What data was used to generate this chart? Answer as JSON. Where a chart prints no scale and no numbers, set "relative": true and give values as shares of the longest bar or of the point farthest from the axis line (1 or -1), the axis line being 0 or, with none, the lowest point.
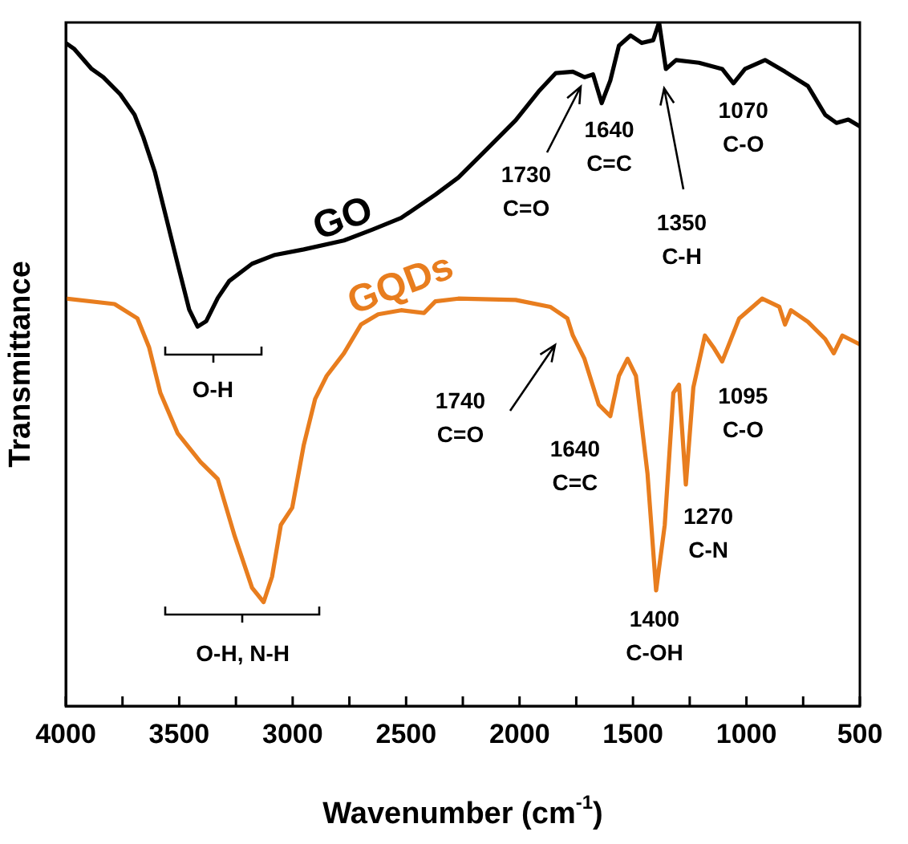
{
  "chart_data": {
    "type": "line",
    "relative": true,
    "xlabel": "Wavenumber (cm$^{-1}$)",
    "ylabel": "Transmittance",
    "xlim": [
      4000,
      500
    ],
    "xticks": [
      4000,
      {
        "value": 3750,
        "label": null
      },
      3500,
      {
        "value": 3250,
        "label": null
      },
      3000,
      {
        "value": 2750,
        "label": null
      },
      2500,
      {
        "value": 2250,
        "label": null
      },
      2000,
      {
        "value": 1750,
        "label": null
      },
      1500,
      {
        "value": 1250,
        "label": null
      },
      1000,
      {
        "value": 750,
        "label": null
      },
      500
    ],
    "grid": false,
    "legend": false,
    "marker": "none",
    "line_style": "solid",
    "series": [
      {
        "name": "GO",
        "color": "#000000",
        "x": [
          4000,
          3962,
          3886,
          3835,
          3760,
          3697,
          3658,
          3608,
          3557,
          3507,
          3456,
          3419,
          3381,
          3330,
          3279,
          3179,
          3078,
          2951,
          2774,
          2648,
          2522,
          2371,
          2270,
          2143,
          2017,
          1916,
          1840,
          1765,
          1714,
          1676,
          1638,
          1600,
          1562,
          1511,
          1461,
          1411,
          1385,
          1355,
          1310,
          1209,
          1107,
          1057,
          1006,
          918,
          830,
          729,
          653,
          603,
          551,
          500
        ],
        "values": [
          0.97,
          0.961,
          0.932,
          0.92,
          0.895,
          0.865,
          0.832,
          0.782,
          0.714,
          0.647,
          0.58,
          0.555,
          0.563,
          0.597,
          0.622,
          0.647,
          0.66,
          0.668,
          0.681,
          0.697,
          0.714,
          0.748,
          0.773,
          0.815,
          0.857,
          0.899,
          0.926,
          0.928,
          0.92,
          0.924,
          0.882,
          0.915,
          0.966,
          0.981,
          0.97,
          0.974,
          1.0,
          0.932,
          0.945,
          0.941,
          0.932,
          0.911,
          0.932,
          0.945,
          0.928,
          0.907,
          0.865,
          0.853,
          0.858,
          0.848
        ]
      },
      {
        "name": "GQDs",
        "color": "#e87d1e",
        "x": [
          4000,
          3785,
          3684,
          3633,
          3583,
          3507,
          3406,
          3330,
          3255,
          3179,
          3128,
          3091,
          3052,
          3002,
          2951,
          2901,
          2850,
          2774,
          2699,
          2623,
          2522,
          2421,
          2371,
          2270,
          2017,
          1865,
          1789,
          1765,
          1714,
          1651,
          1600,
          1562,
          1524,
          1487,
          1436,
          1398,
          1360,
          1322,
          1297,
          1267,
          1234,
          1183,
          1146,
          1107,
          1032,
          931,
          855,
          830,
          804,
          729,
          653,
          615,
          577,
          500
        ],
        "values": [
          0.596,
          0.588,
          0.567,
          0.525,
          0.458,
          0.399,
          0.357,
          0.332,
          0.248,
          0.173,
          0.152,
          0.189,
          0.265,
          0.29,
          0.382,
          0.449,
          0.483,
          0.516,
          0.558,
          0.573,
          0.579,
          0.575,
          0.592,
          0.596,
          0.594,
          0.584,
          0.567,
          0.542,
          0.508,
          0.441,
          0.424,
          0.483,
          0.508,
          0.483,
          0.34,
          0.169,
          0.265,
          0.458,
          0.47,
          0.324,
          0.466,
          0.542,
          0.525,
          0.504,
          0.567,
          0.596,
          0.584,
          0.558,
          0.579,
          0.562,
          0.537,
          0.516,
          0.542,
          0.529
        ]
      }
    ],
    "annotations": [
      "1730\nC=O",
      {
        "text": "1640\nC=C",
        "x": 1640,
        "y": 0.882
      },
      "1350\nC-H",
      {
        "text": "1070\nC-O",
        "x": 1070,
        "y": 0.911
      },
      {
        "text": "O-H",
        "x": 3380,
        "y": 0.555
      },
      {
        "text": "O-H, N-H",
        "x": 3128,
        "y": 0.152
      },
      "1740\nC=O",
      {
        "text": "1640\nC=C",
        "x": 1600,
        "y": 0.424
      },
      {
        "text": "1400\nC-OH",
        "x": 1398,
        "y": 0.169
      },
      {
        "text": "1270\nC-N",
        "x": 1267,
        "y": 0.324
      },
      {
        "text": "1095\nC-O",
        "x": 1107,
        "y": 0.504
      }
    ]
  }
}
